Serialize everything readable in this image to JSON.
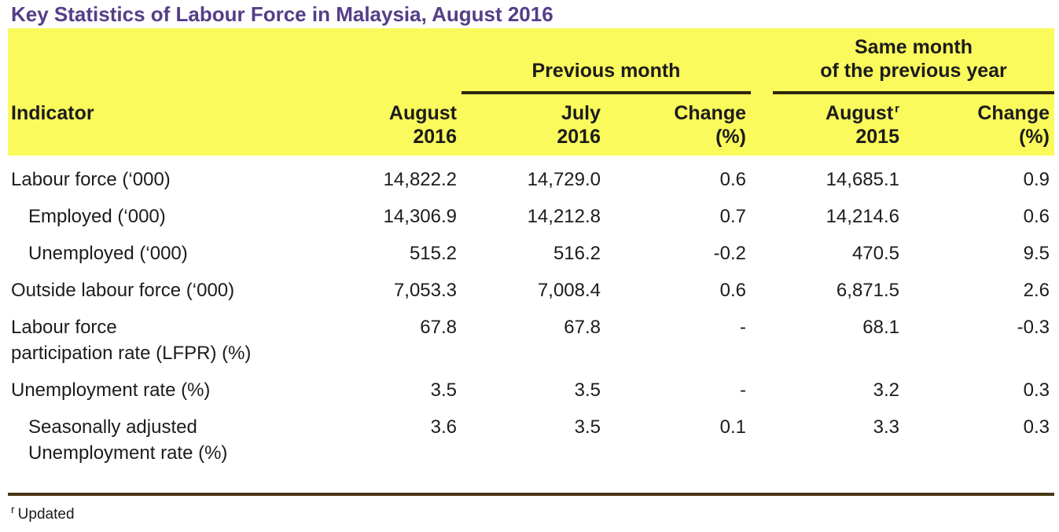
{
  "title": "Key Statistics of Labour Force in Malaysia, August 2016",
  "colors": {
    "title_text": "#543E87",
    "header_background": "#FAFA5C",
    "header_rule": "#2F2708",
    "table_bottom_rule": "#4A3614",
    "body_text": "#1C1C1C"
  },
  "table": {
    "group_headers": {
      "previous_month": "Previous month",
      "same_month_line1": "Same month",
      "same_month_line2": "of the previous year"
    },
    "columns": {
      "indicator": "Indicator",
      "aug2016": {
        "line1": "August",
        "line2": "2016"
      },
      "july2016": {
        "line1": "July",
        "line2": "2016"
      },
      "change_mom": {
        "line1": "Change",
        "line2": "(%)"
      },
      "aug2015": {
        "line1": "August",
        "sup": "r",
        "line2": "2015"
      },
      "change_yoy": {
        "line1": "Change",
        "line2": "(%)"
      }
    },
    "rows": [
      {
        "label1": "Labour force (‘000)",
        "values": [
          "14,822.2",
          "14,729.0",
          "0.6",
          "14,685.1",
          "0.9"
        ]
      },
      {
        "label1": "Employed (‘000)",
        "values": [
          "14,306.9",
          "14,212.8",
          "0.7",
          "14,214.6",
          "0.6"
        ]
      },
      {
        "label1": "Unemployed (‘000)",
        "values": [
          "515.2",
          "516.2",
          "-0.2",
          "470.5",
          "9.5"
        ]
      },
      {
        "label1": "Outside labour force (‘000)",
        "values": [
          "7,053.3",
          "7,008.4",
          "0.6",
          "6,871.5",
          "2.6"
        ]
      },
      {
        "label1": "Labour force",
        "label2": "participation rate (LFPR) (%)",
        "values": [
          "67.8",
          "67.8",
          "-",
          "68.1",
          "-0.3"
        ]
      },
      {
        "label1": "Unemployment rate (%)",
        "values": [
          "3.5",
          "3.5",
          "-",
          "3.2",
          "0.3"
        ]
      },
      {
        "label1": "Seasonally adjusted",
        "label2": "Unemployment rate (%)",
        "values": [
          "3.6",
          "3.5",
          "0.1",
          "3.3",
          "0.3"
        ]
      }
    ]
  },
  "footnote": {
    "sup": "r",
    "text": "Updated"
  }
}
